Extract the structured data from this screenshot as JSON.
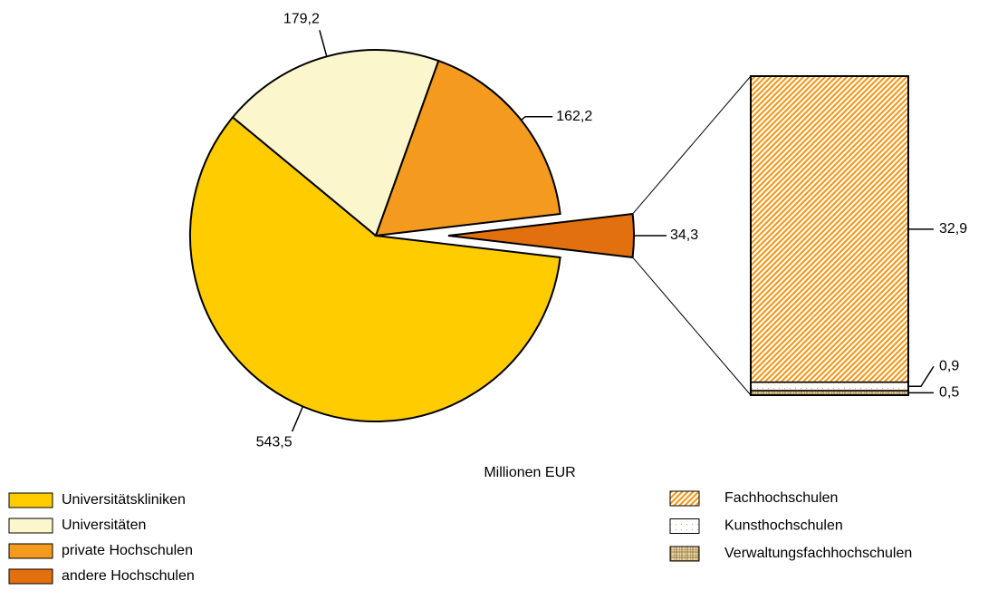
{
  "chart_data": [
    {
      "type": "pie",
      "subtitle": "Millionen EUR",
      "categories": [
        "Universitätskliniken",
        "Universitäten",
        "private Hochschulen",
        "andere Hochschulen"
      ],
      "values": [
        543.5,
        179.2,
        162.2,
        34.3
      ],
      "value_labels": [
        "543,5",
        "179,2",
        "162,2",
        "34,3"
      ],
      "colors": [
        "#ffcc00",
        "#fcf6cc",
        "#f39a1f",
        "#e3700f"
      ],
      "exploded": 3
    },
    {
      "type": "stacked-bar",
      "categories": [
        "Fachhochschulen",
        "Kunsthochschulen",
        "Verwaltungsfachhochschulen"
      ],
      "values": [
        32.9,
        0.9,
        0.5
      ],
      "value_labels": [
        "32,9",
        "0,9",
        "0,5"
      ],
      "colors": [
        "#f39a1f",
        "#e0a040",
        "#9c7a3c"
      ],
      "patterns": [
        "diagonal",
        "dots",
        "grid"
      ]
    }
  ]
}
